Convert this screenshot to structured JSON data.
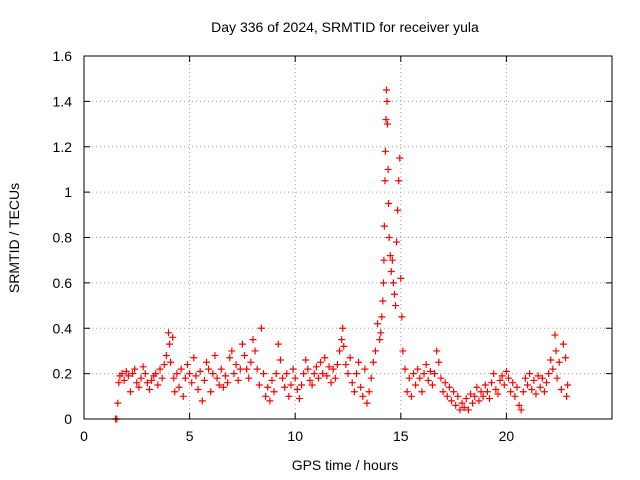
{
  "chart_data": {
    "type": "scatter",
    "title": "Day 336 of 2024, SRMTID for receiver yula",
    "xlabel": "GPS time / hours",
    "ylabel": "SRMTID / TECUs",
    "xlim": [
      0,
      25
    ],
    "ylim": [
      0,
      1.6
    ],
    "xticks": [
      0,
      5,
      10,
      15,
      20
    ],
    "xtick_labels": [
      "0",
      "5",
      "10",
      "15",
      "20"
    ],
    "yticks": [
      0,
      0.2,
      0.4,
      0.6,
      0.8,
      1.0,
      1.2,
      1.4,
      1.6
    ],
    "ytick_labels": [
      "0",
      "0.2",
      "0.4",
      "0.6",
      "0.8",
      "1",
      "1.2",
      "1.4",
      "1.6"
    ],
    "grid": true,
    "marker": "plus",
    "marker_color": "#ff0000",
    "series": [
      {
        "name": "SRMTID",
        "points": [
          [
            1.5,
            0.0
          ],
          [
            1.55,
            0.0
          ],
          [
            1.6,
            0.07
          ],
          [
            1.65,
            0.16
          ],
          [
            1.7,
            0.19
          ],
          [
            1.8,
            0.2
          ],
          [
            1.9,
            0.17
          ],
          [
            2.0,
            0.21
          ],
          [
            2.1,
            0.19
          ],
          [
            2.2,
            0.12
          ],
          [
            2.3,
            0.2
          ],
          [
            2.4,
            0.22
          ],
          [
            2.5,
            0.16
          ],
          [
            2.6,
            0.14
          ],
          [
            2.7,
            0.18
          ],
          [
            2.8,
            0.23
          ],
          [
            2.9,
            0.2
          ],
          [
            3.0,
            0.16
          ],
          [
            3.1,
            0.13
          ],
          [
            3.2,
            0.17
          ],
          [
            3.3,
            0.19
          ],
          [
            3.4,
            0.2
          ],
          [
            3.5,
            0.15
          ],
          [
            3.6,
            0.22
          ],
          [
            3.7,
            0.18
          ],
          [
            3.8,
            0.24
          ],
          [
            3.9,
            0.28
          ],
          [
            4.0,
            0.38
          ],
          [
            4.05,
            0.33
          ],
          [
            4.1,
            0.25
          ],
          [
            4.2,
            0.36
          ],
          [
            4.25,
            0.18
          ],
          [
            4.3,
            0.12
          ],
          [
            4.4,
            0.2
          ],
          [
            4.5,
            0.14
          ],
          [
            4.6,
            0.22
          ],
          [
            4.7,
            0.1
          ],
          [
            4.8,
            0.18
          ],
          [
            4.9,
            0.24
          ],
          [
            5.0,
            0.2
          ],
          [
            5.1,
            0.16
          ],
          [
            5.2,
            0.27
          ],
          [
            5.3,
            0.19
          ],
          [
            5.4,
            0.13
          ],
          [
            5.5,
            0.21
          ],
          [
            5.6,
            0.08
          ],
          [
            5.7,
            0.17
          ],
          [
            5.8,
            0.25
          ],
          [
            5.9,
            0.22
          ],
          [
            6.0,
            0.12
          ],
          [
            6.1,
            0.2
          ],
          [
            6.2,
            0.28
          ],
          [
            6.3,
            0.18
          ],
          [
            6.4,
            0.15
          ],
          [
            6.5,
            0.22
          ],
          [
            6.6,
            0.14
          ],
          [
            6.7,
            0.19
          ],
          [
            6.8,
            0.16
          ],
          [
            6.9,
            0.27
          ],
          [
            7.0,
            0.3
          ],
          [
            7.1,
            0.2
          ],
          [
            7.2,
            0.24
          ],
          [
            7.3,
            0.17
          ],
          [
            7.4,
            0.22
          ],
          [
            7.5,
            0.33
          ],
          [
            7.6,
            0.28
          ],
          [
            7.7,
            0.22
          ],
          [
            7.8,
            0.18
          ],
          [
            7.9,
            0.25
          ],
          [
            8.0,
            0.35
          ],
          [
            8.1,
            0.3
          ],
          [
            8.2,
            0.22
          ],
          [
            8.3,
            0.15
          ],
          [
            8.4,
            0.4
          ],
          [
            8.5,
            0.2
          ],
          [
            8.6,
            0.1
          ],
          [
            8.7,
            0.14
          ],
          [
            8.8,
            0.08
          ],
          [
            8.9,
            0.17
          ],
          [
            9.0,
            0.12
          ],
          [
            9.1,
            0.2
          ],
          [
            9.2,
            0.33
          ],
          [
            9.3,
            0.26
          ],
          [
            9.4,
            0.18
          ],
          [
            9.5,
            0.14
          ],
          [
            9.6,
            0.2
          ],
          [
            9.7,
            0.1
          ],
          [
            9.8,
            0.15
          ],
          [
            9.9,
            0.22
          ],
          [
            10.0,
            0.18
          ],
          [
            10.1,
            0.13
          ],
          [
            10.2,
            0.09
          ],
          [
            10.3,
            0.15
          ],
          [
            10.4,
            0.2
          ],
          [
            10.5,
            0.26
          ],
          [
            10.6,
            0.22
          ],
          [
            10.7,
            0.17
          ],
          [
            10.8,
            0.15
          ],
          [
            10.9,
            0.2
          ],
          [
            11.0,
            0.23
          ],
          [
            11.1,
            0.18
          ],
          [
            11.2,
            0.25
          ],
          [
            11.3,
            0.2
          ],
          [
            11.4,
            0.27
          ],
          [
            11.5,
            0.19
          ],
          [
            11.6,
            0.23
          ],
          [
            11.7,
            0.16
          ],
          [
            11.8,
            0.22
          ],
          [
            11.9,
            0.18
          ],
          [
            12.0,
            0.24
          ],
          [
            12.1,
            0.3
          ],
          [
            12.2,
            0.35
          ],
          [
            12.25,
            0.4
          ],
          [
            12.3,
            0.32
          ],
          [
            12.4,
            0.24
          ],
          [
            12.5,
            0.2
          ],
          [
            12.6,
            0.27
          ],
          [
            12.7,
            0.16
          ],
          [
            12.8,
            0.12
          ],
          [
            12.9,
            0.2
          ],
          [
            13.0,
            0.25
          ],
          [
            13.1,
            0.14
          ],
          [
            13.2,
            0.1
          ],
          [
            13.3,
            0.22
          ],
          [
            13.4,
            0.07
          ],
          [
            13.5,
            0.12
          ],
          [
            13.6,
            0.18
          ],
          [
            13.7,
            0.25
          ],
          [
            13.8,
            0.3
          ],
          [
            13.9,
            0.42
          ],
          [
            14.0,
            0.35
          ],
          [
            14.05,
            0.38
          ],
          [
            14.1,
            0.45
          ],
          [
            14.15,
            0.52
          ],
          [
            14.18,
            0.6
          ],
          [
            14.2,
            0.7
          ],
          [
            14.22,
            0.85
          ],
          [
            14.25,
            1.05
          ],
          [
            14.27,
            1.18
          ],
          [
            14.3,
            1.32
          ],
          [
            14.32,
            1.45
          ],
          [
            14.35,
            1.4
          ],
          [
            14.37,
            1.3
          ],
          [
            14.4,
            1.1
          ],
          [
            14.42,
            0.95
          ],
          [
            14.45,
            0.8
          ],
          [
            14.5,
            0.72
          ],
          [
            14.55,
            0.65
          ],
          [
            14.6,
            0.7
          ],
          [
            14.65,
            0.6
          ],
          [
            14.7,
            0.55
          ],
          [
            14.75,
            0.5
          ],
          [
            14.8,
            0.78
          ],
          [
            14.85,
            0.92
          ],
          [
            14.9,
            1.05
          ],
          [
            14.95,
            1.15
          ],
          [
            15.0,
            0.62
          ],
          [
            15.05,
            0.45
          ],
          [
            15.1,
            0.3
          ],
          [
            15.2,
            0.22
          ],
          [
            15.3,
            0.12
          ],
          [
            15.4,
            0.18
          ],
          [
            15.5,
            0.1
          ],
          [
            15.6,
            0.2
          ],
          [
            15.7,
            0.15
          ],
          [
            15.8,
            0.22
          ],
          [
            15.9,
            0.18
          ],
          [
            16.0,
            0.12
          ],
          [
            16.1,
            0.2
          ],
          [
            16.2,
            0.24
          ],
          [
            16.3,
            0.17
          ],
          [
            16.4,
            0.21
          ],
          [
            16.5,
            0.15
          ],
          [
            16.6,
            0.2
          ],
          [
            16.7,
            0.3
          ],
          [
            16.8,
            0.25
          ],
          [
            16.9,
            0.18
          ],
          [
            17.0,
            0.12
          ],
          [
            17.1,
            0.16
          ],
          [
            17.2,
            0.1
          ],
          [
            17.3,
            0.14
          ],
          [
            17.4,
            0.08
          ],
          [
            17.5,
            0.12
          ],
          [
            17.6,
            0.06
          ],
          [
            17.7,
            0.1
          ],
          [
            17.8,
            0.04
          ],
          [
            17.9,
            0.07
          ],
          [
            18.0,
            0.05
          ],
          [
            18.1,
            0.09
          ],
          [
            18.2,
            0.04
          ],
          [
            18.3,
            0.11
          ],
          [
            18.4,
            0.07
          ],
          [
            18.5,
            0.1
          ],
          [
            18.6,
            0.14
          ],
          [
            18.7,
            0.08
          ],
          [
            18.8,
            0.12
          ],
          [
            18.9,
            0.1
          ],
          [
            19.0,
            0.15
          ],
          [
            19.1,
            0.12
          ],
          [
            19.2,
            0.09
          ],
          [
            19.3,
            0.16
          ],
          [
            19.4,
            0.2
          ],
          [
            19.5,
            0.13
          ],
          [
            19.6,
            0.11
          ],
          [
            19.7,
            0.17
          ],
          [
            19.8,
            0.19
          ],
          [
            19.9,
            0.15
          ],
          [
            20.0,
            0.21
          ],
          [
            20.1,
            0.18
          ],
          [
            20.2,
            0.12
          ],
          [
            20.3,
            0.16
          ],
          [
            20.4,
            0.1
          ],
          [
            20.5,
            0.14
          ],
          [
            20.6,
            0.06
          ],
          [
            20.7,
            0.04
          ],
          [
            20.8,
            0.12
          ],
          [
            20.9,
            0.18
          ],
          [
            21.0,
            0.15
          ],
          [
            21.1,
            0.2
          ],
          [
            21.2,
            0.13
          ],
          [
            21.3,
            0.17
          ],
          [
            21.4,
            0.11
          ],
          [
            21.5,
            0.19
          ],
          [
            21.6,
            0.14
          ],
          [
            21.7,
            0.18
          ],
          [
            21.8,
            0.12
          ],
          [
            21.9,
            0.16
          ],
          [
            22.0,
            0.2
          ],
          [
            22.1,
            0.26
          ],
          [
            22.2,
            0.22
          ],
          [
            22.3,
            0.37
          ],
          [
            22.35,
            0.3
          ],
          [
            22.4,
            0.18
          ],
          [
            22.5,
            0.25
          ],
          [
            22.6,
            0.13
          ],
          [
            22.7,
            0.33
          ],
          [
            22.8,
            0.27
          ],
          [
            22.85,
            0.1
          ],
          [
            22.9,
            0.15
          ]
        ]
      }
    ]
  }
}
